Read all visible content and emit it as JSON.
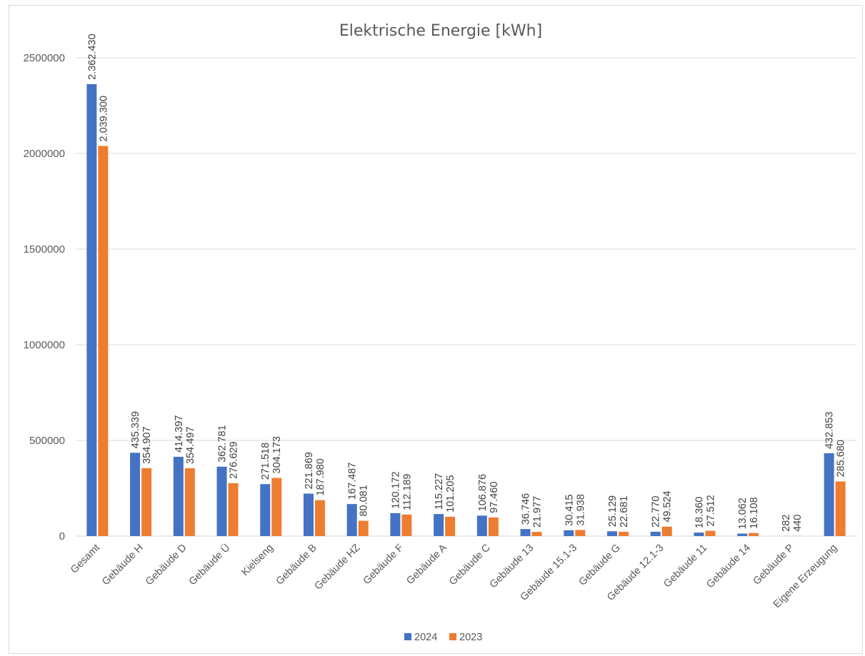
{
  "chart_data": {
    "type": "bar",
    "title": "Elektrische Energie [kWh]",
    "xlabel": "",
    "ylabel": "",
    "ylim": [
      0,
      2500000
    ],
    "yticks": [
      0,
      500000,
      1000000,
      1500000,
      2000000,
      2500000
    ],
    "ytick_labels": [
      "0",
      "500000",
      "1000000",
      "1500000",
      "2000000",
      "2500000"
    ],
    "grid": true,
    "legend_position": "bottom",
    "categories": [
      "Gesamt",
      "Gebäude H",
      "Gebäude D",
      "Gebäude Ü",
      "Kielseng",
      "Gebäude B",
      "Gebäude HZ",
      "Gebäude F",
      "Gebäude A",
      "Gebäude C",
      "Gebäude 13",
      "Gebäude 15.1-3",
      "Gebäude G",
      "Gebäude 12.1-3",
      "Gebäude 11",
      "Gebäude 14",
      "Gebäude P",
      "Eigene Erzeugung"
    ],
    "series": [
      {
        "name": "2024",
        "color": "#4472c4",
        "values": [
          2362430,
          435339,
          414397,
          362781,
          271518,
          221869,
          167487,
          120172,
          115227,
          106876,
          36746,
          30415,
          25129,
          22770,
          18360,
          13062,
          282,
          432853
        ],
        "labels": [
          "2.362.430",
          "435.339",
          "414.397",
          "362.781",
          "271.518",
          "221.869",
          "167.487",
          "120.172",
          "115.227",
          "106.876",
          "36.746",
          "30.415",
          "25.129",
          "22.770",
          "18.360",
          "13.062",
          "282",
          "432.853"
        ]
      },
      {
        "name": "2023",
        "color": "#ed7d31",
        "values": [
          2039300,
          354907,
          354497,
          276629,
          304173,
          187980,
          80081,
          112189,
          101205,
          97460,
          21977,
          31938,
          22681,
          49524,
          27512,
          16108,
          440,
          285680
        ],
        "labels": [
          "2.039.300",
          "354.907",
          "354.497",
          "276.629",
          "304.173",
          "187.980",
          "80.081",
          "112.189",
          "101.205",
          "97.460",
          "21.977",
          "31.938",
          "22.681",
          "49.524",
          "27.512",
          "16.108",
          "440",
          "285.680"
        ]
      }
    ]
  }
}
